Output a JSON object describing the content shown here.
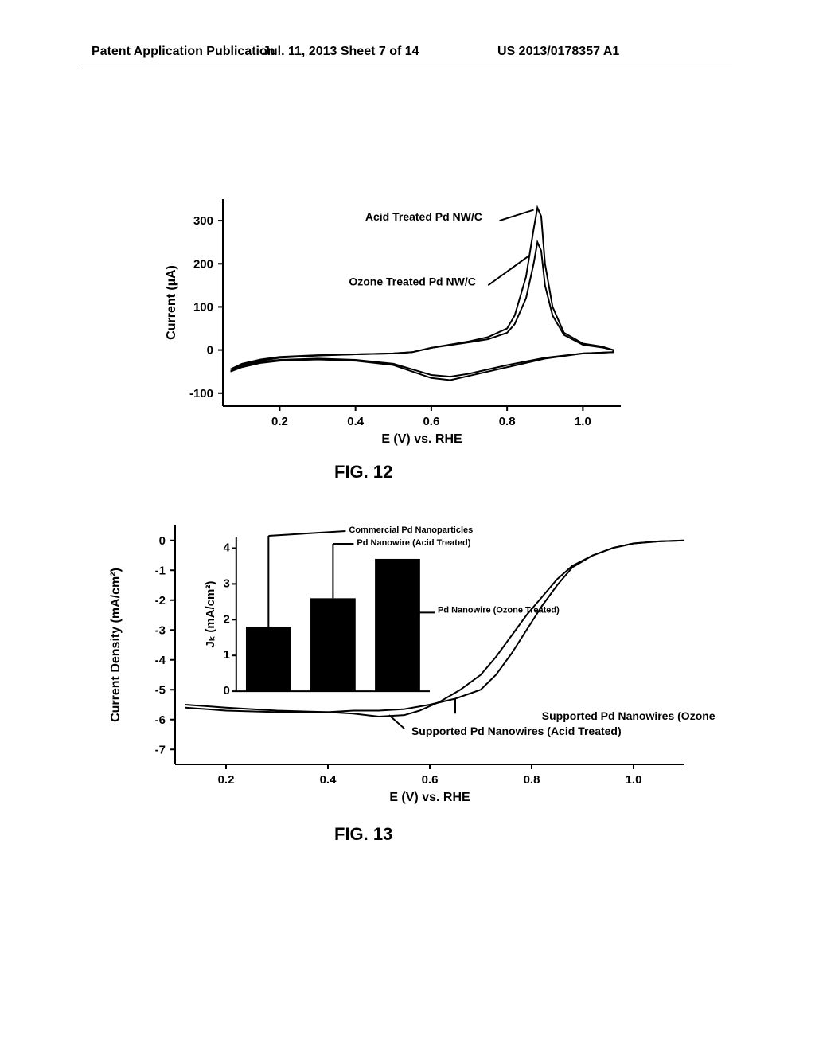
{
  "header": {
    "left": "Patent Application Publication",
    "center": "Jul. 11, 2013  Sheet 7 of 14",
    "right": "US 2013/0178357 A1"
  },
  "fig12": {
    "caption": "FIG. 12",
    "type": "line",
    "xlabel": "E (V) vs. RHE",
    "ylabel": "Current (µA)",
    "x_ticks": [
      0.2,
      0.4,
      0.6,
      0.8,
      1.0
    ],
    "y_ticks": [
      -100,
      0,
      100,
      200,
      300
    ],
    "xlim": [
      0.05,
      1.1
    ],
    "ylim": [
      -130,
      350
    ],
    "series_labels": {
      "acid": "Acid Treated Pd NW/C",
      "ozone": "Ozone Treated Pd NW/C"
    },
    "line_color": "#000000",
    "background_color": "#ffffff",
    "acid_curve": [
      [
        0.07,
        -50
      ],
      [
        0.1,
        -35
      ],
      [
        0.15,
        -25
      ],
      [
        0.2,
        -18
      ],
      [
        0.3,
        -13
      ],
      [
        0.4,
        -10
      ],
      [
        0.5,
        -8
      ],
      [
        0.55,
        -5
      ],
      [
        0.6,
        5
      ],
      [
        0.7,
        20
      ],
      [
        0.75,
        30
      ],
      [
        0.8,
        50
      ],
      [
        0.82,
        80
      ],
      [
        0.85,
        170
      ],
      [
        0.87,
        280
      ],
      [
        0.88,
        330
      ],
      [
        0.89,
        310
      ],
      [
        0.9,
        200
      ],
      [
        0.92,
        100
      ],
      [
        0.95,
        40
      ],
      [
        1.0,
        15
      ],
      [
        1.05,
        8
      ],
      [
        1.08,
        0
      ],
      [
        1.08,
        -5
      ],
      [
        1.0,
        -8
      ],
      [
        0.9,
        -20
      ],
      [
        0.8,
        -40
      ],
      [
        0.7,
        -60
      ],
      [
        0.65,
        -70
      ],
      [
        0.6,
        -65
      ],
      [
        0.55,
        -50
      ],
      [
        0.5,
        -35
      ],
      [
        0.4,
        -25
      ],
      [
        0.3,
        -22
      ],
      [
        0.2,
        -25
      ],
      [
        0.15,
        -30
      ],
      [
        0.1,
        -40
      ],
      [
        0.07,
        -50
      ]
    ],
    "ozone_curve": [
      [
        0.07,
        -45
      ],
      [
        0.1,
        -32
      ],
      [
        0.15,
        -22
      ],
      [
        0.2,
        -16
      ],
      [
        0.3,
        -12
      ],
      [
        0.4,
        -10
      ],
      [
        0.5,
        -8
      ],
      [
        0.55,
        -5
      ],
      [
        0.6,
        5
      ],
      [
        0.7,
        18
      ],
      [
        0.75,
        25
      ],
      [
        0.8,
        40
      ],
      [
        0.82,
        60
      ],
      [
        0.85,
        120
      ],
      [
        0.87,
        200
      ],
      [
        0.88,
        250
      ],
      [
        0.89,
        230
      ],
      [
        0.9,
        150
      ],
      [
        0.92,
        80
      ],
      [
        0.95,
        35
      ],
      [
        1.0,
        12
      ],
      [
        1.05,
        6
      ],
      [
        1.08,
        0
      ],
      [
        1.08,
        -5
      ],
      [
        1.0,
        -8
      ],
      [
        0.9,
        -18
      ],
      [
        0.8,
        -35
      ],
      [
        0.7,
        -55
      ],
      [
        0.65,
        -62
      ],
      [
        0.6,
        -58
      ],
      [
        0.55,
        -45
      ],
      [
        0.5,
        -32
      ],
      [
        0.4,
        -23
      ],
      [
        0.3,
        -20
      ],
      [
        0.2,
        -23
      ],
      [
        0.15,
        -28
      ],
      [
        0.1,
        -37
      ],
      [
        0.07,
        -45
      ]
    ]
  },
  "fig13": {
    "caption": "FIG. 13",
    "type": "line",
    "xlabel": "E (V) vs. RHE",
    "ylabel": "Current Density (mA/cm²)",
    "x_ticks": [
      0.2,
      0.4,
      0.6,
      0.8,
      1.0
    ],
    "y_ticks": [
      -7,
      -6,
      -5,
      -4,
      -3,
      -2,
      -1,
      0
    ],
    "xlim": [
      0.1,
      1.1
    ],
    "ylim": [
      -7.5,
      0.5
    ],
    "series_labels": {
      "ozone": "Supported Pd Nanowires (Ozone Treated)",
      "acid": "Supported Pd Nanowires (Acid Treated)"
    },
    "line_color": "#000000",
    "background_color": "#ffffff",
    "ozone_curve": [
      [
        0.12,
        -5.6
      ],
      [
        0.2,
        -5.7
      ],
      [
        0.3,
        -5.75
      ],
      [
        0.4,
        -5.75
      ],
      [
        0.45,
        -5.7
      ],
      [
        0.5,
        -5.7
      ],
      [
        0.55,
        -5.65
      ],
      [
        0.6,
        -5.5
      ],
      [
        0.65,
        -5.3
      ],
      [
        0.7,
        -5.0
      ],
      [
        0.73,
        -4.5
      ],
      [
        0.76,
        -3.8
      ],
      [
        0.79,
        -3.0
      ],
      [
        0.82,
        -2.2
      ],
      [
        0.85,
        -1.5
      ],
      [
        0.88,
        -0.9
      ],
      [
        0.92,
        -0.5
      ],
      [
        0.96,
        -0.25
      ],
      [
        1.0,
        -0.1
      ],
      [
        1.05,
        -0.03
      ],
      [
        1.1,
        0
      ]
    ],
    "acid_curve": [
      [
        0.12,
        -5.5
      ],
      [
        0.2,
        -5.6
      ],
      [
        0.3,
        -5.7
      ],
      [
        0.4,
        -5.75
      ],
      [
        0.45,
        -5.8
      ],
      [
        0.5,
        -5.9
      ],
      [
        0.55,
        -5.85
      ],
      [
        0.58,
        -5.7
      ],
      [
        0.62,
        -5.4
      ],
      [
        0.66,
        -5.0
      ],
      [
        0.7,
        -4.5
      ],
      [
        0.73,
        -3.9
      ],
      [
        0.76,
        -3.2
      ],
      [
        0.79,
        -2.5
      ],
      [
        0.82,
        -1.9
      ],
      [
        0.85,
        -1.3
      ],
      [
        0.88,
        -0.85
      ],
      [
        0.92,
        -0.5
      ],
      [
        0.96,
        -0.25
      ],
      [
        1.0,
        -0.1
      ],
      [
        1.05,
        -0.03
      ],
      [
        1.1,
        0
      ]
    ],
    "inset": {
      "type": "bar",
      "ylabel": "Jₖ (mA/cm²)",
      "y_ticks": [
        0,
        1,
        2,
        3,
        4
      ],
      "ylim": [
        0,
        4.3
      ],
      "labels": {
        "commercial": "Commercial Pd Nanoparticles",
        "acid": "Pd Nanowire (Acid Treated)",
        "ozone": "Pd Nanowire (Ozone Treated)"
      },
      "bars": [
        {
          "name": "commercial",
          "value": 1.8
        },
        {
          "name": "acid",
          "value": 2.6
        },
        {
          "name": "ozone",
          "value": 3.7
        }
      ],
      "bar_color": "#000000",
      "background_color": "#ffffff"
    }
  }
}
